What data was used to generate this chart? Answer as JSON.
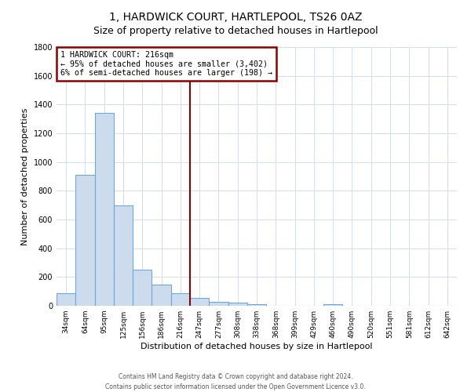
{
  "title": "1, HARDWICK COURT, HARTLEPOOL, TS26 0AZ",
  "subtitle": "Size of property relative to detached houses in Hartlepool",
  "xlabel": "Distribution of detached houses by size in Hartlepool",
  "ylabel": "Number of detached properties",
  "bar_labels": [
    "34sqm",
    "64sqm",
    "95sqm",
    "125sqm",
    "156sqm",
    "186sqm",
    "216sqm",
    "247sqm",
    "277sqm",
    "308sqm",
    "338sqm",
    "368sqm",
    "399sqm",
    "429sqm",
    "460sqm",
    "490sqm",
    "520sqm",
    "551sqm",
    "581sqm",
    "612sqm",
    "642sqm"
  ],
  "bar_values": [
    90,
    910,
    1340,
    700,
    250,
    145,
    85,
    55,
    28,
    20,
    12,
    0,
    0,
    0,
    12,
    0,
    0,
    0,
    0,
    0,
    0
  ],
  "bar_color": "#ccdcec",
  "bar_edge_color": "#6aaad4",
  "vline_color": "#8b0000",
  "ylim": [
    0,
    1800
  ],
  "yticks": [
    0,
    200,
    400,
    600,
    800,
    1000,
    1200,
    1400,
    1600,
    1800
  ],
  "annotation_title": "1 HARDWICK COURT: 216sqm",
  "annotation_line1": "← 95% of detached houses are smaller (3,402)",
  "annotation_line2": "6% of semi-detached houses are larger (198) →",
  "annotation_box_color": "#8b0000",
  "footer_line1": "Contains HM Land Registry data © Crown copyright and database right 2024.",
  "footer_line2": "Contains public sector information licensed under the Open Government Licence v3.0.",
  "grid_color": "#d4dde8",
  "title_fontsize": 10,
  "subtitle_fontsize": 9
}
